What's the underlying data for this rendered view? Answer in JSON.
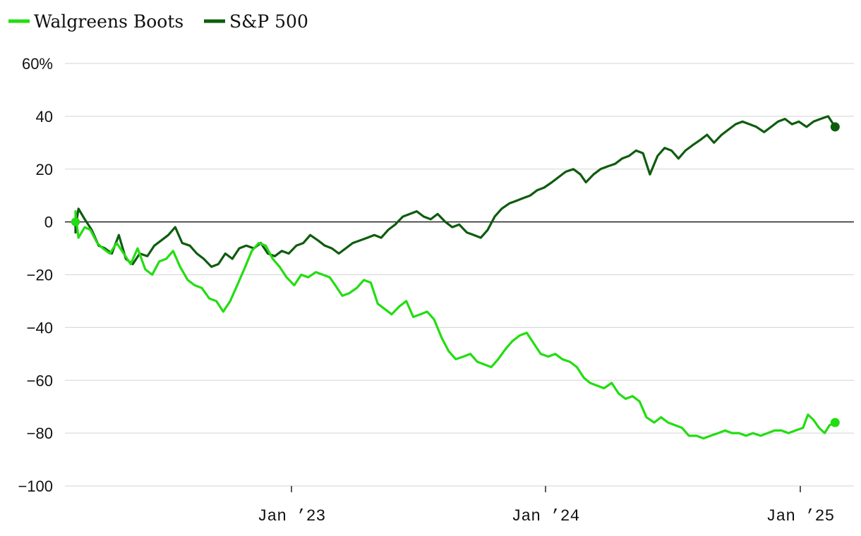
{
  "chart_data": {
    "type": "line",
    "title": "",
    "xlabel": "",
    "ylabel": "",
    "y_unit_suffix": "%",
    "ylim": [
      -100,
      60
    ],
    "yticks": [
      60,
      40,
      20,
      0,
      -20,
      -40,
      -60,
      -80,
      -100
    ],
    "ytick_labels": [
      "60%",
      "40",
      "20",
      "0",
      "−20",
      "−40",
      "−60",
      "−80",
      "−100"
    ],
    "xlim": [
      "2022-02-01",
      "2025-02-28"
    ],
    "xticks": [
      "2023-01-01",
      "2024-01-01",
      "2025-01-01"
    ],
    "xtick_labels": [
      "Jan ’23",
      "Jan ’24",
      "Jan ’25"
    ],
    "grid": true,
    "legend_position": "top-left",
    "series": [
      {
        "name": "Walgreens Boots",
        "color": "#22dd11",
        "points": [
          [
            "2022-02-04",
            0
          ],
          [
            "2022-02-14",
            4
          ],
          [
            "2022-02-22",
            3
          ],
          [
            "2022-03-01",
            -6
          ],
          [
            "2022-03-10",
            -2
          ],
          [
            "2022-03-18",
            -3
          ],
          [
            "2022-03-28",
            -8
          ],
          [
            "2022-04-05",
            -10
          ],
          [
            "2022-04-15",
            -12
          ],
          [
            "2022-04-25",
            -8
          ],
          [
            "2022-05-05",
            -12
          ],
          [
            "2022-05-15",
            -16
          ],
          [
            "2022-05-25",
            -10
          ],
          [
            "2022-06-05",
            -18
          ],
          [
            "2022-06-15",
            -20
          ],
          [
            "2022-06-25",
            -15
          ],
          [
            "2022-07-05",
            -14
          ],
          [
            "2022-07-15",
            -11
          ],
          [
            "2022-07-25",
            -17
          ],
          [
            "2022-08-05",
            -22
          ],
          [
            "2022-08-15",
            -24
          ],
          [
            "2022-08-25",
            -25
          ],
          [
            "2022-09-05",
            -29
          ],
          [
            "2022-09-15",
            -30
          ],
          [
            "2022-09-25",
            -34
          ],
          [
            "2022-10-05",
            -30
          ],
          [
            "2022-10-15",
            -24
          ],
          [
            "2022-10-25",
            -18
          ],
          [
            "2022-11-05",
            -11
          ],
          [
            "2022-11-15",
            -8
          ],
          [
            "2022-11-25",
            -9
          ],
          [
            "2022-12-05",
            -14
          ],
          [
            "2022-12-15",
            -17
          ],
          [
            "2022-12-25",
            -21
          ],
          [
            "2023-01-05",
            -24
          ],
          [
            "2023-01-15",
            -20
          ],
          [
            "2023-01-25",
            -21
          ],
          [
            "2023-02-05",
            -19
          ],
          [
            "2023-02-15",
            -20
          ],
          [
            "2023-02-25",
            -21
          ],
          [
            "2023-03-05",
            -24
          ],
          [
            "2023-03-15",
            -28
          ],
          [
            "2023-03-25",
            -27
          ],
          [
            "2023-04-05",
            -25
          ],
          [
            "2023-04-15",
            -22
          ],
          [
            "2023-04-25",
            -23
          ],
          [
            "2023-05-05",
            -31
          ],
          [
            "2023-05-15",
            -33
          ],
          [
            "2023-05-25",
            -35
          ],
          [
            "2023-06-05",
            -32
          ],
          [
            "2023-06-15",
            -30
          ],
          [
            "2023-06-25",
            -36
          ],
          [
            "2023-07-05",
            -35
          ],
          [
            "2023-07-15",
            -34
          ],
          [
            "2023-07-25",
            -37
          ],
          [
            "2023-08-05",
            -44
          ],
          [
            "2023-08-15",
            -49
          ],
          [
            "2023-08-25",
            -52
          ],
          [
            "2023-09-05",
            -51
          ],
          [
            "2023-09-15",
            -50
          ],
          [
            "2023-09-25",
            -53
          ],
          [
            "2023-10-05",
            -54
          ],
          [
            "2023-10-15",
            -55
          ],
          [
            "2023-10-25",
            -52
          ],
          [
            "2023-11-05",
            -48
          ],
          [
            "2023-11-15",
            -45
          ],
          [
            "2023-11-25",
            -43
          ],
          [
            "2023-12-05",
            -42
          ],
          [
            "2023-12-15",
            -46
          ],
          [
            "2023-12-25",
            -50
          ],
          [
            "2024-01-05",
            -51
          ],
          [
            "2024-01-15",
            -50
          ],
          [
            "2024-01-25",
            -52
          ],
          [
            "2024-02-05",
            -53
          ],
          [
            "2024-02-15",
            -55
          ],
          [
            "2024-02-25",
            -59
          ],
          [
            "2024-03-05",
            -61
          ],
          [
            "2024-03-15",
            -62
          ],
          [
            "2024-03-25",
            -63
          ],
          [
            "2024-04-05",
            -61
          ],
          [
            "2024-04-15",
            -65
          ],
          [
            "2024-04-25",
            -67
          ],
          [
            "2024-05-05",
            -66
          ],
          [
            "2024-05-15",
            -68
          ],
          [
            "2024-05-25",
            -74
          ],
          [
            "2024-06-05",
            -76
          ],
          [
            "2024-06-15",
            -74
          ],
          [
            "2024-06-25",
            -76
          ],
          [
            "2024-07-05",
            -77
          ],
          [
            "2024-07-15",
            -78
          ],
          [
            "2024-07-25",
            -81
          ],
          [
            "2024-08-05",
            -81
          ],
          [
            "2024-08-15",
            -82
          ],
          [
            "2024-08-25",
            -81
          ],
          [
            "2024-09-05",
            -80
          ],
          [
            "2024-09-15",
            -79
          ],
          [
            "2024-09-25",
            -80
          ],
          [
            "2024-10-05",
            -80
          ],
          [
            "2024-10-15",
            -81
          ],
          [
            "2024-10-25",
            -80
          ],
          [
            "2024-11-05",
            -81
          ],
          [
            "2024-11-15",
            -80
          ],
          [
            "2024-11-25",
            -79
          ],
          [
            "2024-12-05",
            -79
          ],
          [
            "2024-12-15",
            -80
          ],
          [
            "2024-12-25",
            -79
          ],
          [
            "2025-01-05",
            -78
          ],
          [
            "2025-01-12",
            -73
          ],
          [
            "2025-01-20",
            -75
          ],
          [
            "2025-01-28",
            -78
          ],
          [
            "2025-02-05",
            -80
          ],
          [
            "2025-02-12",
            -77
          ],
          [
            "2025-02-20",
            -76
          ]
        ]
      },
      {
        "name": "S&P 500",
        "color": "#0e5c0e",
        "points": [
          [
            "2022-02-04",
            0
          ],
          [
            "2022-02-12",
            -4
          ],
          [
            "2022-02-20",
            -2
          ],
          [
            "2022-03-01",
            5
          ],
          [
            "2022-03-10",
            1
          ],
          [
            "2022-03-20",
            -3
          ],
          [
            "2022-03-30",
            -9
          ],
          [
            "2022-04-08",
            -10
          ],
          [
            "2022-04-18",
            -12
          ],
          [
            "2022-04-28",
            -5
          ],
          [
            "2022-05-08",
            -14
          ],
          [
            "2022-05-18",
            -16
          ],
          [
            "2022-05-28",
            -12
          ],
          [
            "2022-06-08",
            -13
          ],
          [
            "2022-06-18",
            -9
          ],
          [
            "2022-06-28",
            -7
          ],
          [
            "2022-07-08",
            -5
          ],
          [
            "2022-07-18",
            -2
          ],
          [
            "2022-07-28",
            -8
          ],
          [
            "2022-08-08",
            -9
          ],
          [
            "2022-08-18",
            -12
          ],
          [
            "2022-08-28",
            -14
          ],
          [
            "2022-09-08",
            -17
          ],
          [
            "2022-09-18",
            -16
          ],
          [
            "2022-09-28",
            -12
          ],
          [
            "2022-10-08",
            -14
          ],
          [
            "2022-10-18",
            -10
          ],
          [
            "2022-10-28",
            -9
          ],
          [
            "2022-11-08",
            -10
          ],
          [
            "2022-11-18",
            -8
          ],
          [
            "2022-11-28",
            -12
          ],
          [
            "2022-12-08",
            -13
          ],
          [
            "2022-12-18",
            -11
          ],
          [
            "2022-12-28",
            -12
          ],
          [
            "2023-01-08",
            -9
          ],
          [
            "2023-01-18",
            -8
          ],
          [
            "2023-01-28",
            -5
          ],
          [
            "2023-02-08",
            -7
          ],
          [
            "2023-02-18",
            -9
          ],
          [
            "2023-02-28",
            -10
          ],
          [
            "2023-03-10",
            -12
          ],
          [
            "2023-03-20",
            -10
          ],
          [
            "2023-03-30",
            -8
          ],
          [
            "2023-04-10",
            -7
          ],
          [
            "2023-04-20",
            -6
          ],
          [
            "2023-04-30",
            -5
          ],
          [
            "2023-05-10",
            -6
          ],
          [
            "2023-05-20",
            -3
          ],
          [
            "2023-05-30",
            -1
          ],
          [
            "2023-06-10",
            2
          ],
          [
            "2023-06-20",
            3
          ],
          [
            "2023-06-30",
            4
          ],
          [
            "2023-07-10",
            2
          ],
          [
            "2023-07-20",
            1
          ],
          [
            "2023-07-30",
            3
          ],
          [
            "2023-08-10",
            0
          ],
          [
            "2023-08-20",
            -2
          ],
          [
            "2023-08-30",
            -1
          ],
          [
            "2023-09-10",
            -4
          ],
          [
            "2023-09-20",
            -5
          ],
          [
            "2023-09-30",
            -6
          ],
          [
            "2023-10-10",
            -3
          ],
          [
            "2023-10-20",
            2
          ],
          [
            "2023-10-30",
            5
          ],
          [
            "2023-11-10",
            7
          ],
          [
            "2023-11-20",
            8
          ],
          [
            "2023-11-30",
            9
          ],
          [
            "2023-12-10",
            10
          ],
          [
            "2023-12-20",
            12
          ],
          [
            "2023-12-30",
            13
          ],
          [
            "2024-01-10",
            15
          ],
          [
            "2024-01-20",
            17
          ],
          [
            "2024-01-30",
            19
          ],
          [
            "2024-02-10",
            20
          ],
          [
            "2024-02-20",
            18
          ],
          [
            "2024-02-28",
            15
          ],
          [
            "2024-03-10",
            18
          ],
          [
            "2024-03-20",
            20
          ],
          [
            "2024-03-30",
            21
          ],
          [
            "2024-04-10",
            22
          ],
          [
            "2024-04-20",
            24
          ],
          [
            "2024-04-30",
            25
          ],
          [
            "2024-05-10",
            27
          ],
          [
            "2024-05-20",
            26
          ],
          [
            "2024-05-30",
            18
          ],
          [
            "2024-06-10",
            25
          ],
          [
            "2024-06-20",
            28
          ],
          [
            "2024-06-30",
            27
          ],
          [
            "2024-07-10",
            24
          ],
          [
            "2024-07-20",
            27
          ],
          [
            "2024-07-30",
            29
          ],
          [
            "2024-08-10",
            31
          ],
          [
            "2024-08-20",
            33
          ],
          [
            "2024-08-30",
            30
          ],
          [
            "2024-09-10",
            33
          ],
          [
            "2024-09-20",
            35
          ],
          [
            "2024-09-30",
            37
          ],
          [
            "2024-10-10",
            38
          ],
          [
            "2024-10-20",
            37
          ],
          [
            "2024-10-30",
            36
          ],
          [
            "2024-11-10",
            34
          ],
          [
            "2024-11-20",
            36
          ],
          [
            "2024-11-30",
            38
          ],
          [
            "2024-12-10",
            39
          ],
          [
            "2024-12-20",
            37
          ],
          [
            "2024-12-30",
            38
          ],
          [
            "2025-01-10",
            36
          ],
          [
            "2025-01-20",
            38
          ],
          [
            "2025-01-30",
            39
          ],
          [
            "2025-02-10",
            40
          ],
          [
            "2025-02-20",
            36
          ]
        ]
      }
    ]
  }
}
